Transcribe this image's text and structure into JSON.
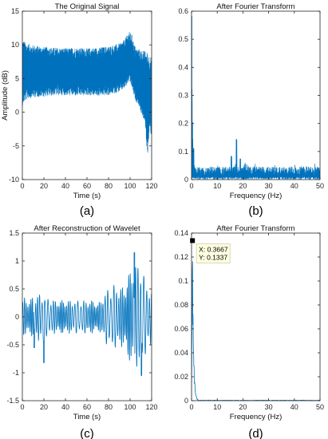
{
  "colors": {
    "line": "#0072BD",
    "axis": "#262626",
    "marker": "#000000",
    "tooltip_bg": "#FFFFE1",
    "tooltip_border": "#CFCFA8"
  },
  "chart_data": [
    {
      "type": "line",
      "title": "The Original Signal",
      "xlabel": "Time (s)",
      "ylabel": "Amplitude (dB)",
      "xlim": [
        0,
        120
      ],
      "ylim": [
        -10,
        15
      ],
      "xticks": [
        "0",
        "20",
        "40",
        "60",
        "80",
        "100",
        "120"
      ],
      "yticks": [
        "-10",
        "-5",
        "0",
        "5",
        "10",
        "15"
      ],
      "caption": "(a)",
      "series": [
        {
          "style": "dense-noise",
          "x": [
            0,
            2,
            5,
            10,
            20,
            30,
            40,
            50,
            60,
            70,
            80,
            90,
            95,
            97,
            99,
            102,
            104,
            106,
            108,
            110,
            112,
            114,
            116,
            118,
            120
          ],
          "upper": [
            11,
            10.5,
            10.2,
            10,
            9.7,
            9.6,
            9.5,
            9.6,
            9.5,
            9.6,
            9.8,
            10.2,
            10.8,
            11.5,
            12,
            11.5,
            10,
            9.5,
            9.4,
            9.3,
            9.2,
            9.1,
            9,
            8.5,
            8.2
          ],
          "lower": [
            1,
            1.5,
            2,
            2.2,
            2.3,
            2.5,
            2.5,
            2.4,
            2.5,
            2.4,
            2.5,
            3,
            3.5,
            4,
            4.5,
            3.5,
            2,
            1.5,
            1,
            0,
            -1,
            -2,
            -6.8,
            -3,
            -3.5
          ]
        }
      ]
    },
    {
      "type": "line",
      "title": "After Fourier Transform",
      "xlabel": "Frequency (Hz)",
      "ylabel": "",
      "xlim": [
        0,
        50
      ],
      "ylim": [
        0,
        0.65
      ],
      "xticks": [
        "0",
        "10",
        "20",
        "30",
        "40",
        "50"
      ],
      "yticks": [
        "0",
        "0.1",
        "0.2",
        "0.3",
        "0.4",
        "0.5",
        "0.6"
      ],
      "caption": "(b)",
      "series": [
        {
          "style": "spectrum",
          "peaks": [
            [
              0.05,
              0.63
            ],
            [
              0.3,
              0.22
            ],
            [
              0.8,
              0.12
            ],
            [
              17.5,
              0.155
            ],
            [
              15.5,
              0.09
            ],
            [
              19,
              0.08
            ]
          ],
          "floor_low": 0.01,
          "floor_high": 0.05
        }
      ]
    },
    {
      "type": "line",
      "title": "After Reconstruction of Wavelet",
      "xlabel": "Time (s)",
      "ylabel": "",
      "xlim": [
        0,
        120
      ],
      "ylim": [
        -1.5,
        1.5
      ],
      "xticks": [
        "0",
        "20",
        "40",
        "60",
        "80",
        "100",
        "120"
      ],
      "yticks": [
        "-1.5",
        "-1",
        "-0.5",
        "0",
        "0.5",
        "1",
        "1.5"
      ],
      "caption": "(c)",
      "series": [
        {
          "style": "wavelet",
          "x": [
            0,
            2,
            5,
            9,
            12,
            15,
            18,
            19.5,
            21,
            25,
            30,
            35,
            40,
            45,
            50,
            55,
            60,
            65,
            70,
            73,
            75,
            78,
            80,
            84,
            88,
            92,
            95,
            98,
            100,
            103,
            104,
            106,
            108,
            110,
            112,
            114,
            116,
            118,
            119,
            120
          ],
          "amp": [
            0.3,
            0.35,
            0.3,
            0.35,
            0.4,
            0.45,
            0.3,
            0.75,
            0.35,
            0.35,
            0.3,
            0.3,
            0.3,
            0.3,
            0.3,
            0.3,
            0.3,
            0.3,
            0.25,
            0.3,
            0.4,
            0.5,
            0.5,
            0.6,
            0.55,
            0.55,
            0.5,
            0.8,
            0.8,
            0.9,
            1.2,
            0.9,
            0.95,
            1.0,
            0.8,
            0.7,
            0.6,
            0.5,
            0.6,
            0.4
          ]
        }
      ]
    },
    {
      "type": "line",
      "title": "After Fourier Transform",
      "xlabel": "Frequency (Hz)",
      "ylabel": "",
      "xlim": [
        0,
        50
      ],
      "ylim": [
        0,
        0.14
      ],
      "xticks": [
        "0",
        "10",
        "20",
        "30",
        "40",
        "50"
      ],
      "yticks": [
        "0",
        "0.02",
        "0.04",
        "0.06",
        "0.08",
        "0.1",
        "0.12",
        "0.14"
      ],
      "caption": "(d)",
      "series": [
        {
          "style": "spectrum-low",
          "peak": [
            0.3667,
            0.1337
          ],
          "decay_to": 3
        }
      ],
      "datatip": {
        "x_label": "X: 0.3667",
        "y_label": "Y: 0.1337",
        "x": 0.3667,
        "y": 0.1337
      }
    }
  ]
}
